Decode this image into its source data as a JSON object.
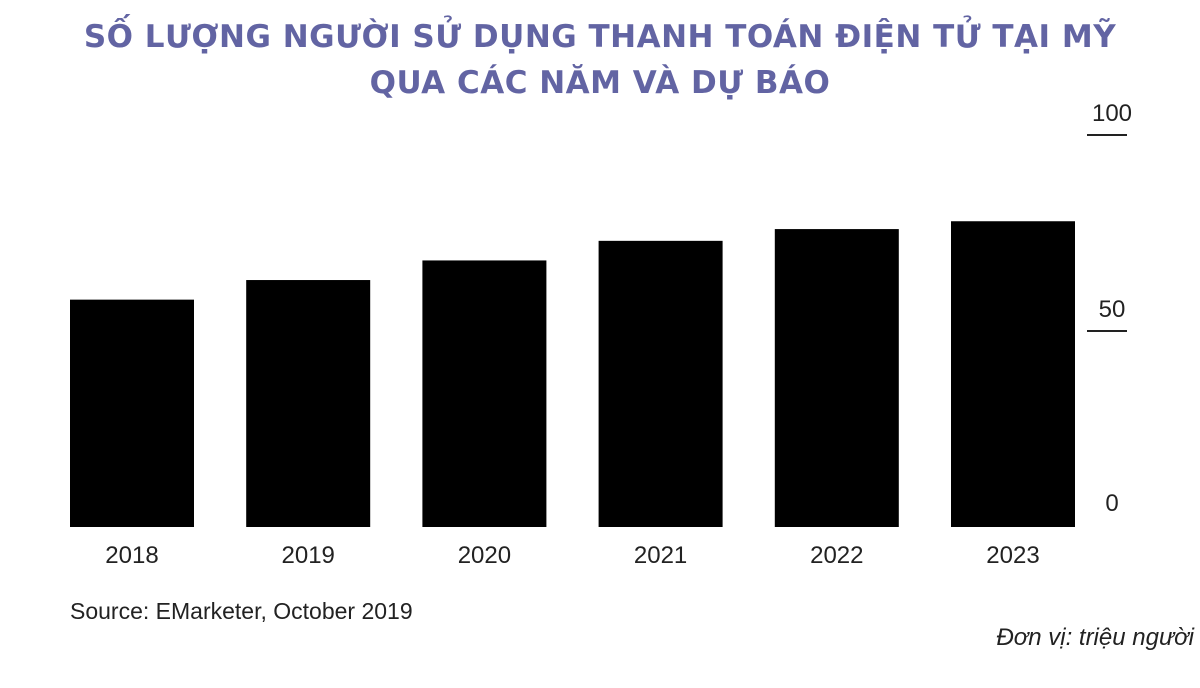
{
  "title": {
    "line1": "SỐ LƯỢNG NGƯỜI SỬ DỤNG THANH TOÁN ĐIỆN TỬ TẠI MỸ",
    "line2": "QUA CÁC NĂM VÀ DỰ BÁO"
  },
  "source": "Source: EMarketer, October 2019",
  "unit_note": "Đơn vị: triệu người",
  "colors": {
    "title": "#6264a3",
    "bar": "#000000",
    "text": "#222222"
  },
  "chart_data": {
    "type": "bar",
    "categories": [
      "2018",
      "2019",
      "2020",
      "2021",
      "2022",
      "2023"
    ],
    "values": [
      58,
      63,
      68,
      73,
      76,
      78
    ],
    "ylim": [
      0,
      100
    ],
    "yticks": [
      0,
      50,
      100
    ],
    "ytick_labels": [
      "0",
      "50",
      "100"
    ],
    "y_axis_side": "right",
    "grid": false,
    "legend": "none",
    "title": "SỐ LƯỢNG NGƯỜI SỬ DỤNG THANH TOÁN ĐIỆN TỬ TẠI MỸ QUA CÁC NĂM VÀ DỰ BÁO",
    "xlabel": "",
    "ylabel": ""
  }
}
